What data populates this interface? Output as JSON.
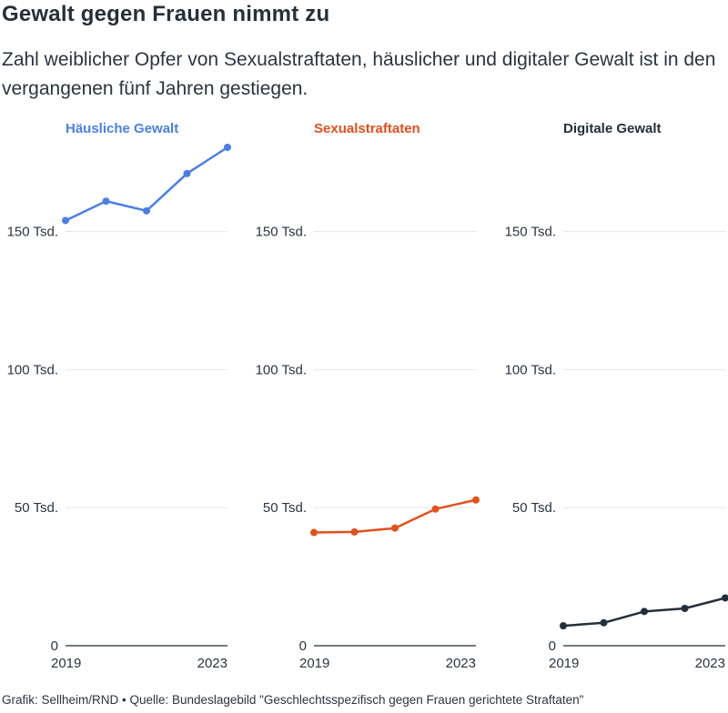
{
  "title": "Gewalt gegen Frauen nimmt zu",
  "subtitle": "Zahl weiblicher Opfer von Sexualstraftaten, häuslicher und digitaler Gewalt ist in den vergangenen fünf Jahren gestiegen.",
  "footer": "Grafik: Sellheim/RND • Quelle: Bundeslagebild \"Geschlechtsspezifisch gegen Frauen gerichtete Straftaten\"",
  "chart_data": [
    {
      "type": "line",
      "title": "Häusliche Gewalt",
      "color": "#4a7fe6",
      "x": [
        2019,
        2020,
        2021,
        2022,
        2023
      ],
      "values": [
        154000,
        161000,
        157500,
        171000,
        180500
      ],
      "ylim": [
        0,
        180500
      ],
      "yticks": [
        0,
        50000,
        100000,
        150000
      ],
      "ytick_labels": [
        "0",
        "50 Tsd.",
        "100 Tsd.",
        "150 Tsd."
      ],
      "xtick_labels": [
        "2019",
        "2023"
      ],
      "grid": true
    },
    {
      "type": "line",
      "title": "Sexualstraftaten",
      "color": "#e2501c",
      "x": [
        2019,
        2020,
        2021,
        2022,
        2023
      ],
      "values": [
        41000,
        41200,
        42600,
        49500,
        52800
      ],
      "ylim": [
        0,
        180500
      ],
      "yticks": [
        0,
        50000,
        100000,
        150000
      ],
      "ytick_labels": [
        "0",
        "50 Tsd.",
        "100 Tsd.",
        "150 Tsd."
      ],
      "xtick_labels": [
        "2019",
        "2023"
      ],
      "grid": true
    },
    {
      "type": "line",
      "title": "Digitale Gewalt",
      "color": "#232f3b",
      "x": [
        2019,
        2020,
        2021,
        2022,
        2023
      ],
      "values": [
        7200,
        8300,
        12400,
        13500,
        17300
      ],
      "ylim": [
        0,
        180500
      ],
      "yticks": [
        0,
        50000,
        100000,
        150000
      ],
      "ytick_labels": [
        "0",
        "50 Tsd.",
        "100 Tsd.",
        "150 Tsd."
      ],
      "xtick_labels": [
        "2019",
        "2023"
      ],
      "grid": true
    }
  ]
}
